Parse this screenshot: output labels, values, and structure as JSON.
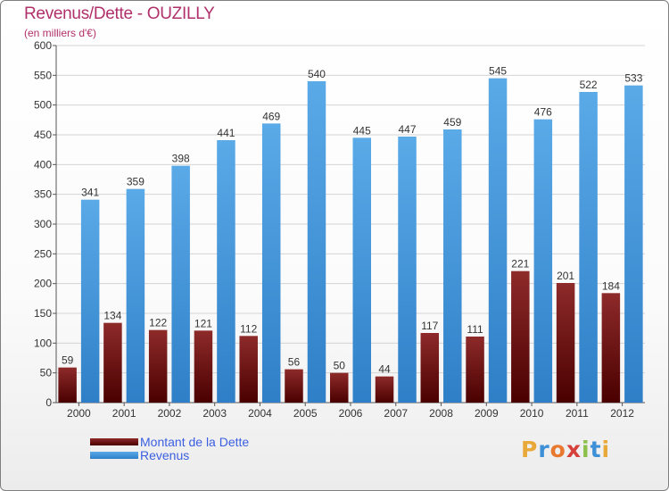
{
  "header": {
    "title": "Revenus/Dette - OUZILLY",
    "subtitle": "(en milliers d'€)"
  },
  "colors": {
    "dette": "#6b0a0a",
    "revenus": "#3f96dc",
    "title": "#b0306a",
    "legend_text": "#3b5fe0"
  },
  "chart_data": {
    "type": "bar",
    "title": "Revenus/Dette - OUZILLY",
    "subtitle": "(en milliers d'€)",
    "xlabel": "",
    "ylabel": "",
    "ylim": [
      0,
      600
    ],
    "ytick_step": 50,
    "grid": true,
    "legend_position": "bottom-left",
    "categories": [
      "2000",
      "2001",
      "2002",
      "2003",
      "2004",
      "2005",
      "2006",
      "2007",
      "2008",
      "2009",
      "2010",
      "2011",
      "2012"
    ],
    "series": [
      {
        "name": "Montant de la Dette",
        "values": [
          59,
          134,
          122,
          121,
          112,
          56,
          50,
          44,
          117,
          111,
          221,
          201,
          184
        ]
      },
      {
        "name": "Revenus",
        "values": [
          341,
          359,
          398,
          441,
          469,
          540,
          445,
          447,
          459,
          545,
          476,
          522,
          533
        ]
      }
    ]
  },
  "legend": {
    "items": [
      {
        "label": "Montant de la Dette",
        "swatch": "dette"
      },
      {
        "label": "Revenus",
        "swatch": "revenus"
      }
    ]
  },
  "logo": {
    "letters": [
      {
        "ch": "P",
        "color": "#e8a93a"
      },
      {
        "ch": "r",
        "color": "#3d8fd6"
      },
      {
        "ch": "o",
        "color": "#e8792e"
      },
      {
        "ch": "x",
        "color": "#d6403a"
      },
      {
        "ch": "i",
        "color": "#8cc04a"
      },
      {
        "ch": "t",
        "color": "#3d8fd6"
      },
      {
        "ch": "i",
        "color": "#e8a93a"
      }
    ]
  }
}
